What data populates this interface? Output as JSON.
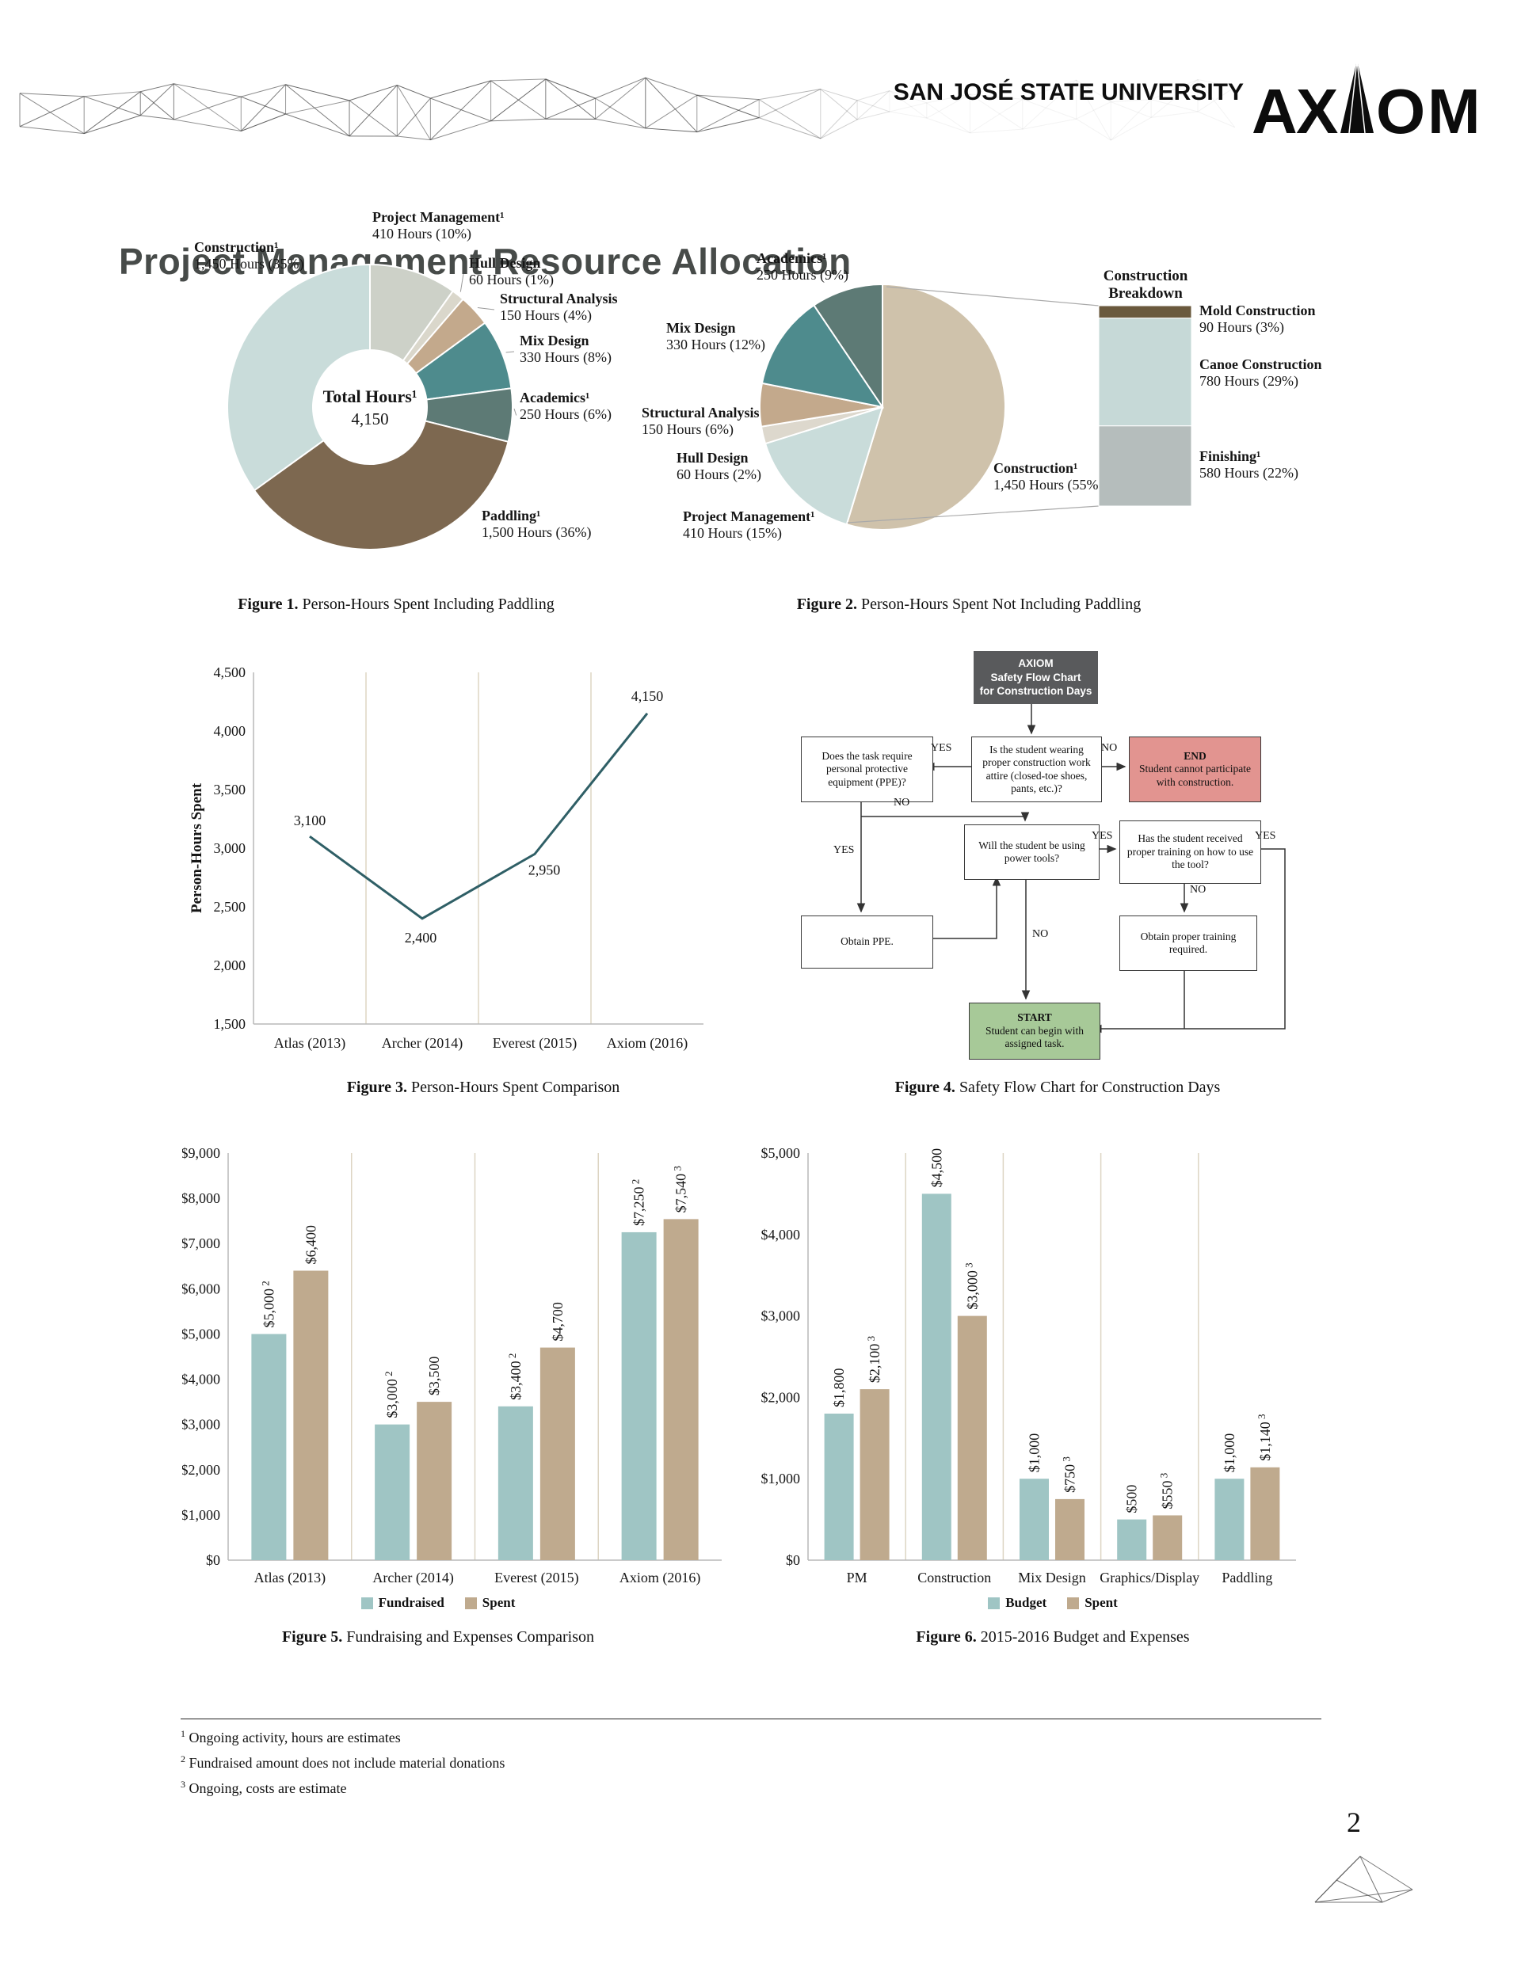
{
  "header": {
    "university": "SAN JOSÉ STATE UNIVERSITY",
    "logo_text": "AXIOM",
    "page_title": "Project Management Resource Allocation"
  },
  "page_number": "2",
  "captions": {
    "fig1": {
      "label": "Figure 1.",
      "text": "Person-Hours Spent Including Paddling"
    },
    "fig2": {
      "label": "Figure 2.",
      "text": "Person-Hours Spent Not Including Paddling"
    },
    "fig3": {
      "label": "Figure 3.",
      "text": "Person-Hours Spent Comparison"
    },
    "fig4": {
      "label": "Figure 4.",
      "text": "Safety Flow Chart for Construction Days"
    },
    "fig5": {
      "label": "Figure 5.",
      "text": "Fundraising and Expenses Comparison"
    },
    "fig6": {
      "label": "Figure 6.",
      "text": "2015-2016 Budget and Expenses"
    }
  },
  "footnotes": [
    {
      "sup": "1",
      "text": "Ongoing activity, hours are estimates"
    },
    {
      "sup": "2",
      "text": "Fundraised amount does not include material donations"
    },
    {
      "sup": "3",
      "text": "Ongoing, costs are estimate"
    }
  ],
  "chart_data": [
    {
      "id": "fig1",
      "type": "pie",
      "subtype": "donut",
      "title": "Person-Hours Spent Including Paddling",
      "total": 4150,
      "center": {
        "label": "Total Hours¹",
        "value": "4,150"
      },
      "slices": [
        {
          "label": "Project Management¹",
          "detail": "410 Hours (10%)",
          "hours": 410,
          "pct": 10,
          "color": "#cdd1c8"
        },
        {
          "label": "Hull Design",
          "detail": "60 Hours (1%)",
          "hours": 60,
          "pct": 1,
          "color": "#dad7cb"
        },
        {
          "label": "Structural Analysis",
          "detail": "150 Hours (4%)",
          "hours": 150,
          "pct": 4,
          "color": "#c3a98c"
        },
        {
          "label": "Mix Design",
          "detail": "330 Hours (8%)",
          "hours": 330,
          "pct": 8,
          "color": "#4e8b8d"
        },
        {
          "label": "Academics¹",
          "detail": "250 Hours (6%)",
          "hours": 250,
          "pct": 6,
          "color": "#5d7a75"
        },
        {
          "label": "Paddling¹",
          "detail": "1,500 Hours (36%)",
          "hours": 1500,
          "pct": 36,
          "color": "#7d6850"
        },
        {
          "label": "Construction¹",
          "detail": "1,450 Hours (35%)",
          "hours": 1450,
          "pct": 35,
          "color": "#c9dcda"
        }
      ]
    },
    {
      "id": "fig2",
      "type": "pie",
      "title": "Person-Hours Spent Not Including Paddling",
      "total": 2650,
      "slices": [
        {
          "label": "Construction¹",
          "detail": "1,450 Hours (55%)",
          "hours": 1450,
          "pct": 55,
          "color": "#cfc2ab"
        },
        {
          "label": "Project Management¹",
          "detail": "410 Hours (15%)",
          "hours": 410,
          "pct": 15,
          "color": "#c9dcda"
        },
        {
          "label": "Hull Design",
          "detail": "60 Hours (2%)",
          "hours": 60,
          "pct": 2,
          "color": "#ddd8cd"
        },
        {
          "label": "Structural Analysis",
          "detail": "150 Hours (6%)",
          "hours": 150,
          "pct": 6,
          "color": "#c3a98c"
        },
        {
          "label": "Mix Design",
          "detail": "330 Hours (12%)",
          "hours": 330,
          "pct": 12,
          "color": "#4e8b8d"
        },
        {
          "label": "Academics¹",
          "detail": "250 Hours (9%)",
          "hours": 250,
          "pct": 9,
          "color": "#5d7a75"
        }
      ],
      "breakdown": {
        "title_line1": "Construction",
        "title_line2": "Breakdown",
        "total": 1450,
        "segments": [
          {
            "label": "Mold Construction",
            "detail": "90 Hours (3%)",
            "hours": 90,
            "pct": 3,
            "color": "#6a593d"
          },
          {
            "label": "Canoe Construction",
            "detail": "780 Hours (29%)",
            "hours": 780,
            "pct": 29,
            "color": "#c6d9d7"
          },
          {
            "label": "Finishing¹",
            "detail": "580 Hours (22%)",
            "hours": 580,
            "pct": 22,
            "color": "#b5bdbc"
          }
        ]
      }
    },
    {
      "id": "fig3",
      "type": "line",
      "title": "Person-Hours Spent Comparison",
      "ylabel": "Person-Hours Spent",
      "categories": [
        "Atlas (2013)",
        "Archer (2014)",
        "Everest (2015)",
        "Axiom (2016)"
      ],
      "values": [
        3100,
        2400,
        2950,
        4150
      ],
      "point_labels": [
        "3,100",
        "2,400",
        "2,950",
        "4,150"
      ],
      "ylim": [
        1500,
        4500
      ],
      "ytick_step": 500,
      "line_color": "#2f5f66",
      "grid": "category-separators"
    },
    {
      "id": "fig4",
      "type": "flowchart",
      "title": "Safety Flow Chart for Construction Days",
      "nodes": {
        "banner": {
          "line1": "AXIOM",
          "line2": "Safety Flow Chart",
          "line3": "for Construction Days",
          "color": "#595a5c"
        },
        "attire": {
          "text": "Is the student wearing proper construction work attire (closed-toe shoes, pants, etc.)?"
        },
        "ppe": {
          "text": "Does the task require personal protective equipment (PPE)?"
        },
        "end": {
          "title": "END",
          "text": "Student cannot participate with construction.",
          "color": "#e29490"
        },
        "power": {
          "text": "Will the student be using power tools?"
        },
        "training": {
          "text": "Has the student received proper training on how to use the tool?"
        },
        "obtain_ppe": {
          "text": "Obtain PPE."
        },
        "obtain_training": {
          "text": "Obtain proper training required."
        },
        "start": {
          "title": "START",
          "text": "Student can begin with assigned task.",
          "color": "#a7c998"
        }
      },
      "edges": [
        {
          "from": "banner",
          "to": "attire",
          "label": ""
        },
        {
          "from": "attire",
          "to": "ppe",
          "label": "YES"
        },
        {
          "from": "attire",
          "to": "end",
          "label": "NO"
        },
        {
          "from": "ppe",
          "to": "power",
          "label": "NO"
        },
        {
          "from": "ppe",
          "to": "obtain_ppe",
          "label": "YES"
        },
        {
          "from": "power",
          "to": "training",
          "label": "YES"
        },
        {
          "from": "power",
          "to": "start",
          "label": "NO"
        },
        {
          "from": "training",
          "to": "obtain_training",
          "label": "NO"
        },
        {
          "from": "training",
          "to": "start",
          "label": "YES"
        },
        {
          "from": "obtain_ppe",
          "to": "power",
          "label": ""
        },
        {
          "from": "obtain_training",
          "to": "start",
          "label": ""
        }
      ]
    },
    {
      "id": "fig5",
      "type": "bar",
      "title": "Fundraising and Expenses Comparison",
      "categories": [
        "Atlas (2013)",
        "Archer (2014)",
        "Everest (2015)",
        "Axiom (2016)"
      ],
      "series": [
        {
          "name": "Fundraised",
          "color": "#9fc5c4",
          "values": [
            5000,
            3000,
            3400,
            7250
          ],
          "bar_labels": [
            {
              "text": "$5,000",
              "sup": "2"
            },
            {
              "text": "$3,000",
              "sup": "2"
            },
            {
              "text": "$3,400",
              "sup": "2"
            },
            {
              "text": "$7,250",
              "sup": "2"
            }
          ]
        },
        {
          "name": "Spent",
          "color": "#bfaa8e",
          "values": [
            6400,
            3500,
            4700,
            7540
          ],
          "bar_labels": [
            {
              "text": "$6,400",
              "sup": ""
            },
            {
              "text": "$3,500",
              "sup": ""
            },
            {
              "text": "$4,700",
              "sup": ""
            },
            {
              "text": "$7,540",
              "sup": "3"
            }
          ]
        }
      ],
      "ylim": [
        0,
        9000
      ],
      "ytick_step": 1000,
      "legend_position": "bottom",
      "grid": "category-separators"
    },
    {
      "id": "fig6",
      "type": "bar",
      "title": "2015-2016 Budget and Expenses",
      "categories": [
        "PM",
        "Construction",
        "Mix Design",
        "Graphics/Display",
        "Paddling"
      ],
      "series": [
        {
          "name": "Budget",
          "color": "#9fc5c4",
          "values": [
            1800,
            4500,
            1000,
            500,
            1000
          ],
          "bar_labels": [
            {
              "text": "$1,800",
              "sup": ""
            },
            {
              "text": "$4,500",
              "sup": ""
            },
            {
              "text": "$1,000",
              "sup": ""
            },
            {
              "text": "$500",
              "sup": ""
            },
            {
              "text": "$1,000",
              "sup": ""
            }
          ]
        },
        {
          "name": "Spent",
          "color": "#bfaa8e",
          "values": [
            2100,
            3000,
            750,
            550,
            1140
          ],
          "bar_labels": [
            {
              "text": "$2,100",
              "sup": "3"
            },
            {
              "text": "$3,000",
              "sup": "3"
            },
            {
              "text": "$750",
              "sup": "3"
            },
            {
              "text": "$550",
              "sup": "3"
            },
            {
              "text": "$1,140",
              "sup": "3"
            }
          ]
        }
      ],
      "ylim": [
        0,
        5000
      ],
      "ytick_step": 1000,
      "legend_position": "bottom",
      "grid": "category-separators"
    }
  ]
}
